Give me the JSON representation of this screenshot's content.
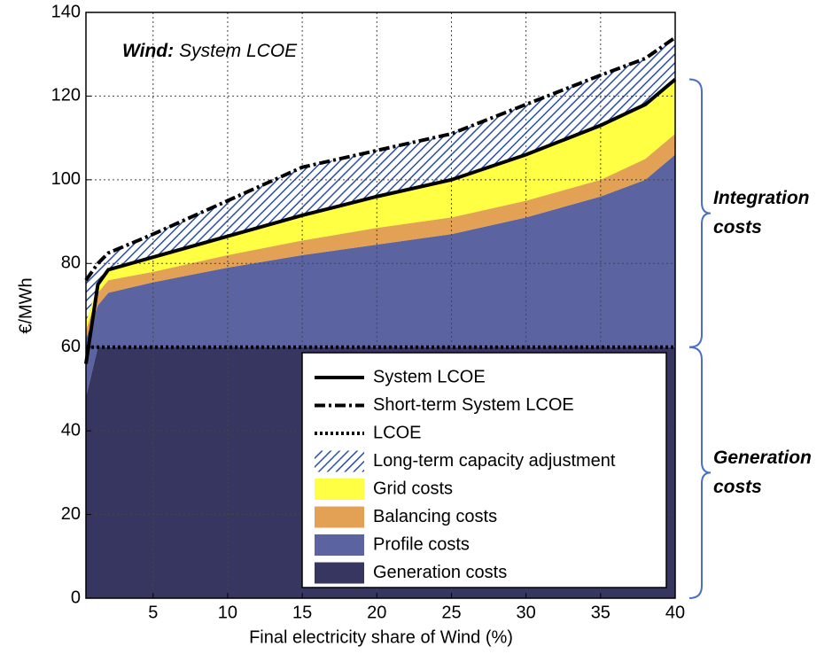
{
  "chart_data": {
    "type": "stacked-area",
    "title_parts": [
      "Wind:",
      "System LCOE"
    ],
    "x_label": "Final electricity share of Wind (%)",
    "y_label": "€/MWh",
    "x": [
      0.5,
      1.3,
      2,
      5,
      10,
      15,
      20,
      25,
      30,
      35,
      38,
      40
    ],
    "xlim": [
      0.5,
      40
    ],
    "ylim": [
      0,
      140
    ],
    "xticks": [
      5,
      10,
      15,
      20,
      25,
      30,
      35,
      40
    ],
    "yticks": [
      0,
      20,
      40,
      60,
      80,
      100,
      120,
      140
    ],
    "grid": true,
    "legend": "lower right",
    "series": [
      {
        "name": "System LCOE",
        "kind": "line",
        "dash": "solid",
        "color": "#000000",
        "values": [
          56,
          75,
          78.5,
          81.5,
          86.5,
          91.5,
          96,
          100,
          106,
          113,
          118,
          124
        ]
      },
      {
        "name": "Short-term System LCOE",
        "kind": "line",
        "dash": "dashdot",
        "color": "#000000",
        "values": [
          76,
          80,
          82.5,
          87,
          95,
          103,
          107,
          111,
          118,
          125,
          129,
          134
        ]
      },
      {
        "name": "LCOE",
        "kind": "line",
        "dash": "dot",
        "color": "#000000",
        "values": [
          60,
          60,
          60,
          60,
          60,
          60,
          60,
          60,
          60,
          60,
          60,
          60
        ]
      },
      {
        "name": "Long-term capacity adjustment",
        "kind": "area",
        "hatch": true,
        "color": "#2b4fa8",
        "values": [
          10,
          5,
          4,
          5.5,
          8.5,
          11.5,
          11,
          11,
          12,
          12,
          11,
          10
        ]
      },
      {
        "name": "Grid costs",
        "kind": "area",
        "color": "#ffff44",
        "values": [
          2,
          2,
          2.5,
          3.5,
          4.5,
          6,
          7.5,
          9,
          11,
          13,
          13,
          13
        ]
      },
      {
        "name": "Balancing costs",
        "kind": "area",
        "color": "#e3a155",
        "values": [
          2,
          3,
          3,
          2.5,
          3,
          3.5,
          4,
          4,
          4,
          4,
          5,
          5
        ]
      },
      {
        "name": "Profile costs",
        "kind": "area",
        "color": "#5b63a0",
        "values": [
          14,
          10,
          13,
          15.5,
          19,
          22,
          24.5,
          27,
          31,
          36,
          40,
          46
        ]
      },
      {
        "name": "Generation costs",
        "kind": "area",
        "color": "#363661",
        "values": [
          48,
          60,
          60,
          60,
          60,
          60,
          60,
          60,
          60,
          60,
          60,
          60
        ]
      }
    ],
    "annotations": [
      {
        "lines": [
          "Integration",
          "costs"
        ],
        "span": [
          60,
          124
        ]
      },
      {
        "lines": [
          "Generation",
          "costs"
        ],
        "span": [
          0,
          60
        ]
      }
    ]
  }
}
